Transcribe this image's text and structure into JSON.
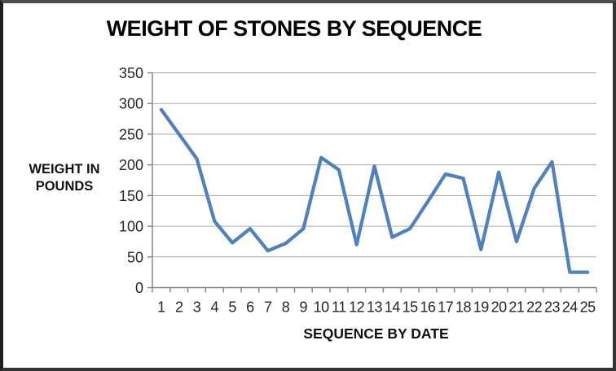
{
  "chart_data": {
    "type": "line",
    "title": "WEIGHT OF STONES BY SEQUENCE",
    "xlabel": "SEQUENCE BY DATE",
    "ylabel": "WEIGHT IN POUNDS",
    "ylabel_lines": [
      "WEIGHT IN",
      "POUNDS"
    ],
    "categories": [
      1,
      2,
      3,
      4,
      5,
      6,
      7,
      8,
      9,
      10,
      11,
      12,
      13,
      14,
      15,
      16,
      17,
      18,
      19,
      20,
      21,
      22,
      23,
      24,
      25
    ],
    "values": [
      290,
      250,
      210,
      108,
      73,
      96,
      60,
      72,
      96,
      212,
      192,
      70,
      198,
      82,
      96,
      140,
      185,
      178,
      62,
      188,
      75,
      162,
      205,
      25,
      25
    ],
    "ylim": [
      0,
      350
    ],
    "yticks": [
      0,
      50,
      100,
      150,
      200,
      250,
      300,
      350
    ],
    "grid": true,
    "legend": "none",
    "colors": {
      "line": "#4F81BD",
      "gridline": "#A6A6A6",
      "axis": "#808080",
      "tick_label": "#262626",
      "title": "#000000"
    }
  }
}
